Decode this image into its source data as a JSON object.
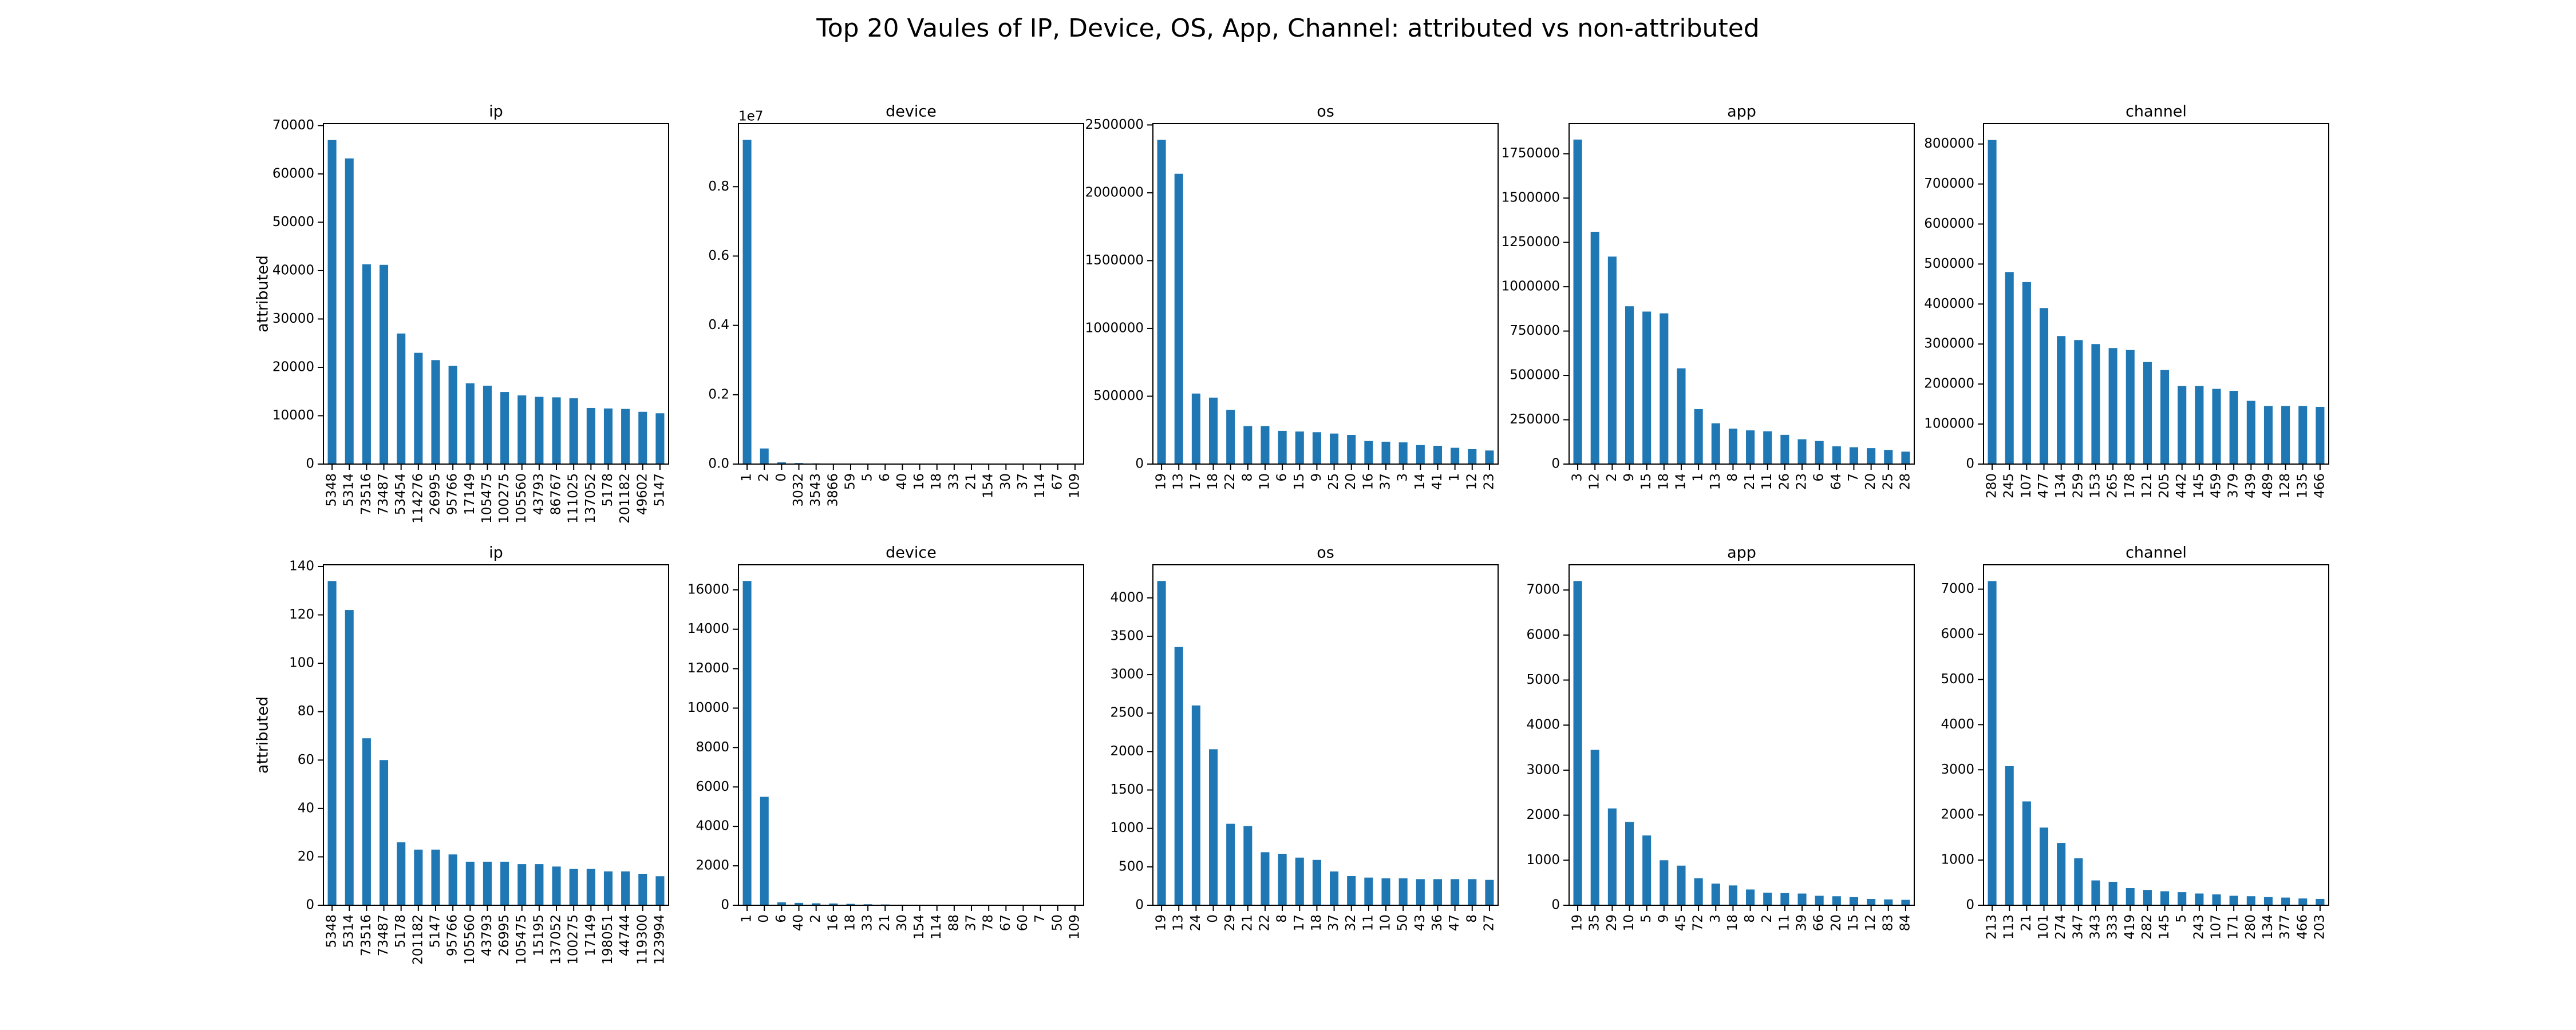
{
  "title": "Top 20 Vaules of IP, Device, OS, App, Channel: attributed vs non-attributed",
  "chart_data": [
    {
      "type": "bar",
      "title": "ip",
      "ylabel": "attributed",
      "color": "#1f77b4",
      "categories": [
        "5348",
        "5314",
        "73516",
        "73487",
        "53454",
        "114276",
        "26995",
        "95766",
        "17149",
        "105475",
        "100275",
        "105560",
        "43793",
        "86767",
        "111025",
        "137052",
        "5178",
        "201182",
        "49602",
        "5147"
      ],
      "values": [
        67000,
        63200,
        41300,
        41200,
        27000,
        23000,
        21500,
        20300,
        16700,
        16200,
        14900,
        14200,
        13900,
        13800,
        13600,
        11600,
        11500,
        11400,
        10800,
        10500
      ],
      "ylim": [
        0,
        70400
      ],
      "yticks": [
        0,
        10000,
        20000,
        30000,
        40000,
        50000,
        60000,
        70000
      ]
    },
    {
      "type": "bar",
      "title": "device",
      "color": "#1f77b4",
      "offset_label": "1e7",
      "categories": [
        "1",
        "2",
        "0",
        "3032",
        "3543",
        "3866",
        "59",
        "5",
        "6",
        "40",
        "16",
        "18",
        "33",
        "21",
        "154",
        "30",
        "37",
        "114",
        "67",
        "109"
      ],
      "values": [
        9350000,
        450000,
        50000,
        30000,
        20000,
        15000,
        12000,
        10000,
        9000,
        8000,
        7000,
        6000,
        5000,
        4500,
        4000,
        3500,
        3000,
        2500,
        2000,
        1500
      ],
      "ylim": [
        0,
        9820000
      ],
      "yticks": [
        {
          "value": 0,
          "label": "0.0"
        },
        {
          "value": 2000000,
          "label": "0.2"
        },
        {
          "value": 4000000,
          "label": "0.4"
        },
        {
          "value": 6000000,
          "label": "0.6"
        },
        {
          "value": 8000000,
          "label": "0.8"
        }
      ]
    },
    {
      "type": "bar",
      "title": "os",
      "color": "#1f77b4",
      "categories": [
        "19",
        "13",
        "17",
        "18",
        "22",
        "8",
        "10",
        "6",
        "15",
        "9",
        "25",
        "20",
        "16",
        "37",
        "3",
        "14",
        "41",
        "1",
        "12",
        "23"
      ],
      "values": [
        2390000,
        2140000,
        520000,
        490000,
        400000,
        280000,
        280000,
        245000,
        240000,
        235000,
        225000,
        215000,
        170000,
        165000,
        160000,
        140000,
        135000,
        120000,
        110000,
        100000
      ],
      "ylim": [
        0,
        2510000
      ],
      "yticks": [
        0,
        500000,
        1000000,
        1500000,
        2000000,
        2500000
      ]
    },
    {
      "type": "bar",
      "title": "app",
      "color": "#1f77b4",
      "categories": [
        "3",
        "12",
        "2",
        "9",
        "15",
        "18",
        "14",
        "1",
        "13",
        "8",
        "21",
        "11",
        "26",
        "23",
        "6",
        "64",
        "7",
        "20",
        "25",
        "28"
      ],
      "values": [
        1830000,
        1310000,
        1170000,
        890000,
        860000,
        850000,
        540000,
        310000,
        230000,
        200000,
        190000,
        185000,
        165000,
        140000,
        130000,
        100000,
        95000,
        90000,
        80000,
        70000
      ],
      "ylim": [
        0,
        1920000
      ],
      "yticks": [
        0,
        250000,
        500000,
        750000,
        1000000,
        1250000,
        1500000,
        1750000
      ]
    },
    {
      "type": "bar",
      "title": "channel",
      "color": "#1f77b4",
      "categories": [
        "280",
        "245",
        "107",
        "477",
        "134",
        "259",
        "153",
        "265",
        "178",
        "121",
        "205",
        "442",
        "145",
        "459",
        "379",
        "439",
        "489",
        "128",
        "135",
        "466"
      ],
      "values": [
        810000,
        480000,
        455000,
        390000,
        320000,
        310000,
        300000,
        290000,
        285000,
        255000,
        235000,
        195000,
        195000,
        188000,
        183000,
        158000,
        145000,
        145000,
        145000,
        143000
      ],
      "ylim": [
        0,
        851000
      ],
      "yticks": [
        0,
        100000,
        200000,
        300000,
        400000,
        500000,
        600000,
        700000,
        800000
      ]
    },
    {
      "type": "bar",
      "title": "ip",
      "ylabel": "attributed",
      "color": "#1f77b4",
      "categories": [
        "5348",
        "5314",
        "73516",
        "73487",
        "5178",
        "201182",
        "5147",
        "95766",
        "105560",
        "43793",
        "26995",
        "105475",
        "15195",
        "137052",
        "100275",
        "17149",
        "198051",
        "44744",
        "119300",
        "123994"
      ],
      "values": [
        134,
        122,
        69,
        60,
        26,
        23,
        23,
        21,
        18,
        18,
        18,
        17,
        17,
        16,
        15,
        15,
        14,
        14,
        13,
        12
      ],
      "ylim": [
        0,
        140.7
      ],
      "yticks": [
        0,
        20,
        40,
        60,
        80,
        100,
        120,
        140
      ]
    },
    {
      "type": "bar",
      "title": "device",
      "color": "#1f77b4",
      "categories": [
        "1",
        "0",
        "6",
        "40",
        "2",
        "16",
        "18",
        "33",
        "21",
        "30",
        "154",
        "114",
        "88",
        "37",
        "78",
        "67",
        "60",
        "7",
        "50",
        "109"
      ],
      "values": [
        16450,
        5500,
        150,
        120,
        100,
        90,
        70,
        50,
        40,
        30,
        25,
        20,
        15,
        12,
        10,
        8,
        6,
        5,
        4,
        3
      ],
      "ylim": [
        0,
        17270
      ],
      "yticks": [
        0,
        2000,
        4000,
        6000,
        8000,
        10000,
        12000,
        14000,
        16000
      ]
    },
    {
      "type": "bar",
      "title": "os",
      "color": "#1f77b4",
      "categories": [
        "19",
        "13",
        "24",
        "0",
        "29",
        "21",
        "22",
        "8",
        "17",
        "18",
        "37",
        "32",
        "11",
        "10",
        "50",
        "43",
        "36",
        "47",
        "8",
        "27"
      ],
      "values": [
        4220,
        3360,
        2600,
        2030,
        1060,
        1030,
        690,
        670,
        620,
        590,
        440,
        380,
        360,
        350,
        350,
        340,
        340,
        340,
        340,
        330
      ],
      "ylim": [
        0,
        4430
      ],
      "yticks": [
        0,
        500,
        1000,
        1500,
        2000,
        2500,
        3000,
        3500,
        4000
      ]
    },
    {
      "type": "bar",
      "title": "app",
      "color": "#1f77b4",
      "categories": [
        "19",
        "35",
        "29",
        "10",
        "5",
        "9",
        "45",
        "72",
        "3",
        "18",
        "8",
        "2",
        "11",
        "39",
        "66",
        "20",
        "15",
        "12",
        "83",
        "84"
      ],
      "values": [
        7200,
        3450,
        2150,
        1850,
        1550,
        1000,
        880,
        600,
        480,
        440,
        350,
        280,
        270,
        260,
        210,
        200,
        180,
        140,
        130,
        120
      ],
      "ylim": [
        0,
        7560
      ],
      "yticks": [
        0,
        1000,
        2000,
        3000,
        4000,
        5000,
        6000,
        7000
      ]
    },
    {
      "type": "bar",
      "title": "channel",
      "color": "#1f77b4",
      "categories": [
        "213",
        "113",
        "21",
        "101",
        "274",
        "347",
        "343",
        "333",
        "419",
        "282",
        "145",
        "5",
        "243",
        "107",
        "171",
        "280",
        "134",
        "377",
        "466",
        "203"
      ],
      "values": [
        7180,
        3080,
        2300,
        1720,
        1380,
        1040,
        550,
        520,
        380,
        340,
        310,
        290,
        260,
        240,
        210,
        200,
        180,
        170,
        150,
        140
      ],
      "ylim": [
        0,
        7540
      ],
      "yticks": [
        0,
        1000,
        2000,
        3000,
        4000,
        5000,
        6000,
        7000
      ]
    }
  ]
}
